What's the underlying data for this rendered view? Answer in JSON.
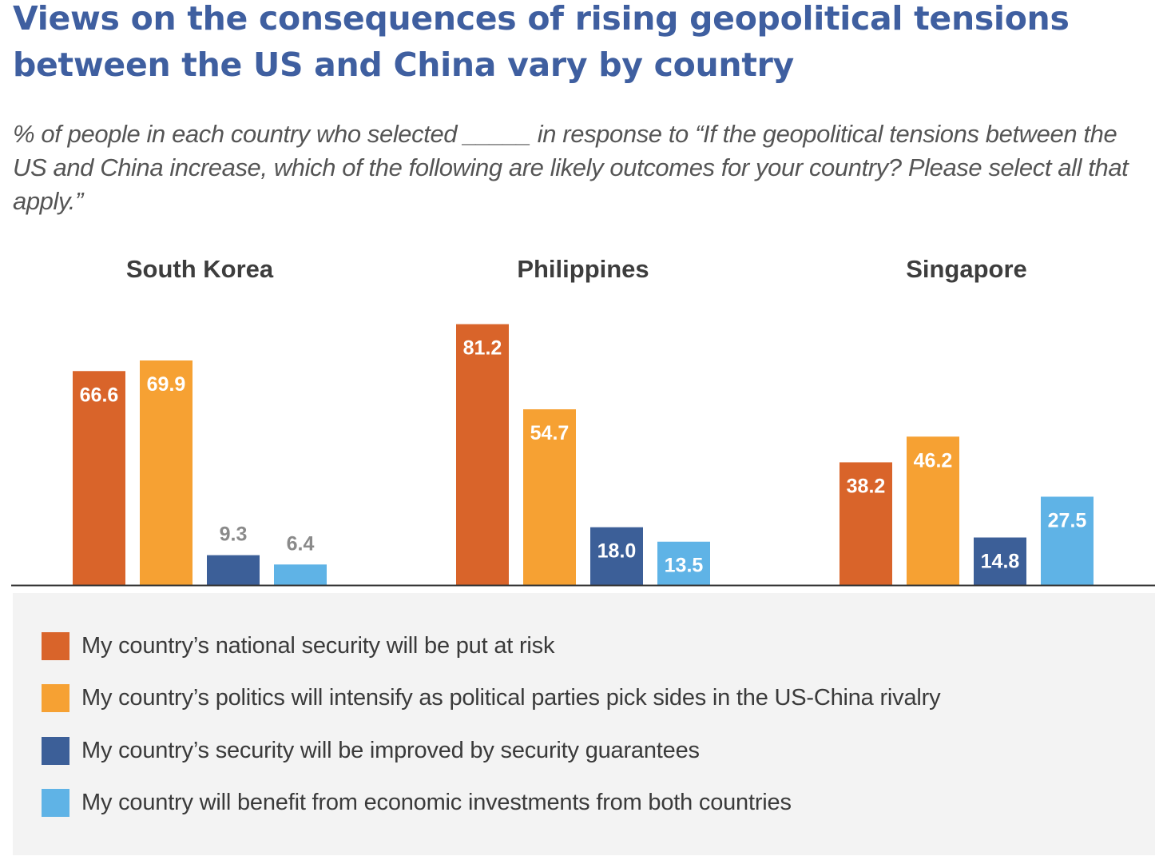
{
  "title": "Views on the consequences of rising geopolitical tensions between the US and China vary by country",
  "subtitle": "% of people in each country who selected _____ in response to “If the geopolitical tensions between the US and China increase, which of the following are likely outcomes for your country? Please select all that apply.”",
  "colors": {
    "national_security": "#d9642a",
    "politics": "#f6a133",
    "security_guarantees": "#3c5f98",
    "economic_investments": "#5fb3e6",
    "outside_label": "#8a8a8a",
    "inside_label": "#ffffff",
    "axis": "#333333",
    "legend_background": "#f3f3f3"
  },
  "chart_data": {
    "type": "bar",
    "categories": [
      "South Korea",
      "Philippines",
      "Singapore"
    ],
    "series": [
      {
        "name": "My country’s national security will be put at risk",
        "color": "#d9642a",
        "values": [
          66.6,
          81.2,
          38.2
        ],
        "labels": [
          "66.6",
          "81.2",
          "38.2"
        ]
      },
      {
        "name": "My country’s politics will intensify as political parties pick sides in the US-China rivalry",
        "color": "#f6a133",
        "values": [
          69.9,
          54.7,
          46.2
        ],
        "labels": [
          "69.9",
          "54.7",
          "46.2"
        ]
      },
      {
        "name": "My country’s security will be improved by security guarantees",
        "color": "#3c5f98",
        "values": [
          9.3,
          18.0,
          14.8
        ],
        "labels": [
          "9.3",
          "18.0",
          "14.8"
        ]
      },
      {
        "name": "My country will benefit from economic investments from both countries",
        "color": "#5fb3e6",
        "values": [
          6.4,
          13.5,
          27.5
        ],
        "labels": [
          "6.4",
          "13.5",
          "27.5"
        ]
      }
    ],
    "ylim": [
      0,
      100
    ],
    "grid": false,
    "legend_position": "bottom"
  }
}
